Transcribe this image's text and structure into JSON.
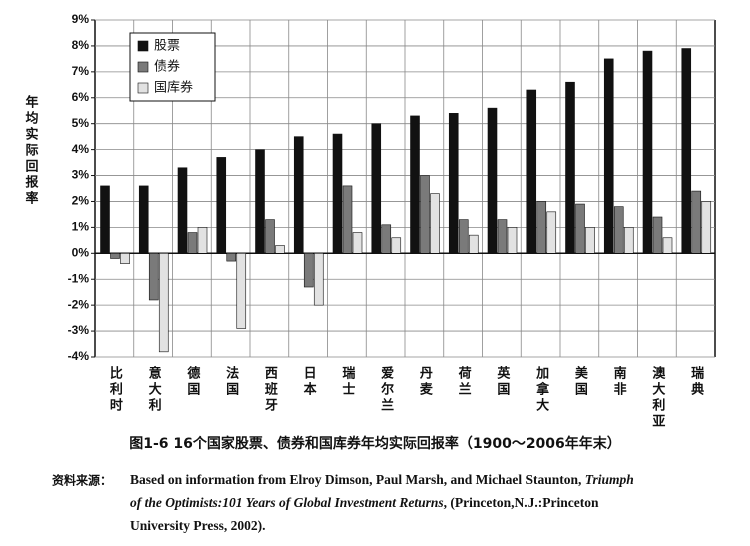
{
  "chart_data": {
    "type": "bar",
    "ylabel": "年均实际回报率",
    "categories": [
      "比利时",
      "意大利",
      "德国",
      "法国",
      "西班牙",
      "日本",
      "瑞士",
      "爱尔兰",
      "丹麦",
      "荷兰",
      "英国",
      "加拿大",
      "美国",
      "南非",
      "澳大利亚",
      "瑞典"
    ],
    "series": [
      {
        "name": "股票",
        "color": "#111111",
        "values": [
          2.6,
          2.6,
          3.3,
          3.7,
          4.0,
          4.5,
          4.6,
          5.0,
          5.3,
          5.4,
          5.6,
          6.3,
          6.6,
          7.5,
          7.8,
          7.9
        ]
      },
      {
        "name": "债券",
        "color": "#7a7a7a",
        "values": [
          -0.2,
          -1.8,
          0.8,
          -0.3,
          1.3,
          -1.3,
          2.6,
          1.1,
          3.0,
          1.3,
          1.3,
          2.0,
          1.9,
          1.8,
          1.4,
          2.4
        ]
      },
      {
        "name": "国库券",
        "color": "#e2e2e2",
        "values": [
          -0.4,
          -3.8,
          1.0,
          -2.9,
          0.3,
          -2.0,
          0.8,
          0.6,
          2.3,
          0.7,
          1.0,
          1.6,
          1.0,
          1.0,
          0.6,
          2.0
        ]
      }
    ],
    "ylim": [
      -4,
      9
    ],
    "yticks": [
      {
        "value": -4,
        "label": "-4%"
      },
      {
        "value": -3,
        "label": "-3%"
      },
      {
        "value": -2,
        "label": "-2%"
      },
      {
        "value": -1,
        "label": "-1%"
      },
      {
        "value": 0,
        "label": "0%"
      },
      {
        "value": 1,
        "label": "1%"
      },
      {
        "value": 2,
        "label": "2%"
      },
      {
        "value": 3,
        "label": "3%"
      },
      {
        "value": 4,
        "label": "4%"
      },
      {
        "value": 5,
        "label": "5%"
      },
      {
        "value": 6,
        "label": "6%"
      },
      {
        "value": 7,
        "label": "7%"
      },
      {
        "value": 8,
        "label": "8%"
      },
      {
        "value": 9,
        "label": "9%"
      }
    ],
    "grid": true,
    "legend": "top-left"
  },
  "caption": "图1-6  16个国家股票、债券和国库券年均实际回报率（1900～2006年年末）",
  "source": {
    "label": "资料来源：",
    "lines": [
      [
        {
          "text": "Based on information from Elroy Dimson, Paul Marsh, and Michael Staunton, ",
          "italic": false
        },
        {
          "text": "Triumph",
          "italic": true
        }
      ],
      [
        {
          "text": "of the Optimists:101 Years of Global Investment Returns",
          "italic": true
        },
        {
          "text": ", (Princeton,N.J.:Princeton",
          "italic": false
        }
      ],
      [
        {
          "text": "University Press, 2002).",
          "italic": false
        }
      ]
    ]
  }
}
